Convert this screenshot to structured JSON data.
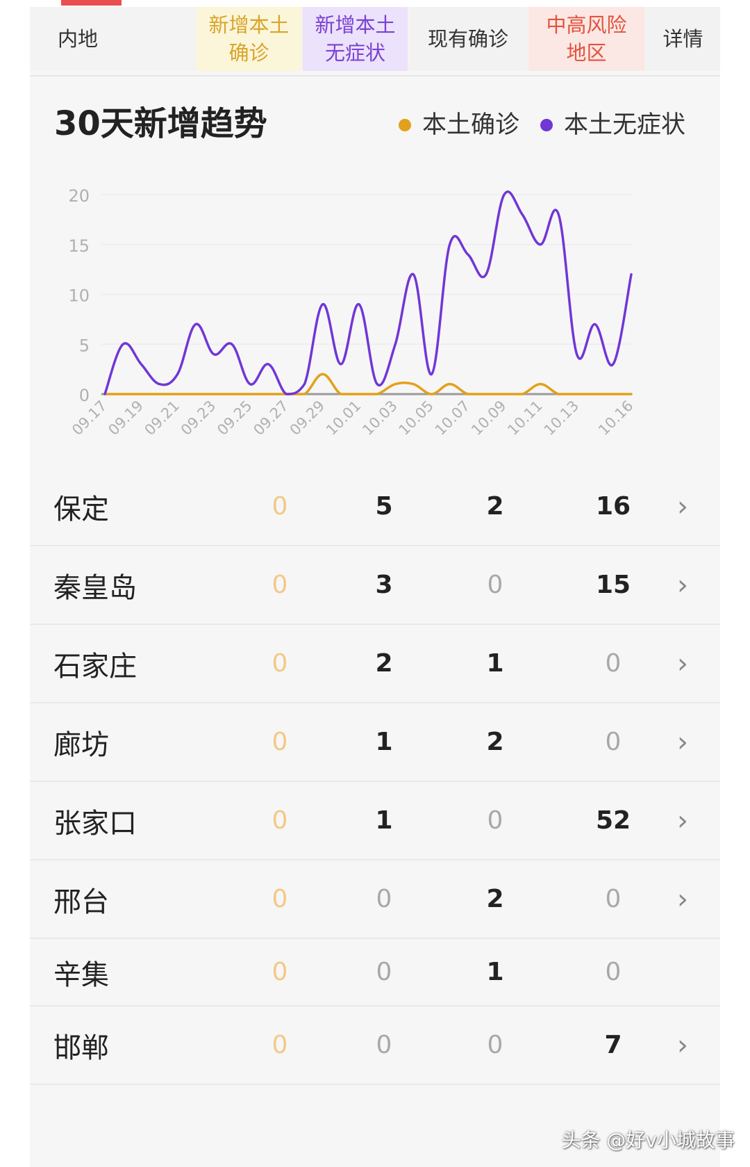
{
  "header": {
    "region_label": "内地",
    "col1_label": "新增本土\n确诊",
    "col2_label": "新增本土\n无症状",
    "col3_label": "现有确诊",
    "col4_label": "中高风险\n地区",
    "col5_label": "详情"
  },
  "chart": {
    "title": "30天新增趋势",
    "legend": [
      {
        "name": "本土确诊",
        "color": "#e3a01a"
      },
      {
        "name": "本土无症状",
        "color": "#7136d6"
      }
    ]
  },
  "chart_data": {
    "type": "line",
    "title": "30天新增趋势",
    "x": [
      "09.17",
      "09.18",
      "09.19",
      "09.20",
      "09.21",
      "09.22",
      "09.23",
      "09.24",
      "09.25",
      "09.26",
      "09.27",
      "09.28",
      "09.29",
      "09.30",
      "10.01",
      "10.02",
      "10.03",
      "10.04",
      "10.05",
      "10.06",
      "10.07",
      "10.08",
      "10.09",
      "10.10",
      "10.11",
      "10.12",
      "10.13",
      "10.14",
      "10.15",
      "10.16"
    ],
    "x_tick_labels": [
      "09.17",
      "09.19",
      "09.21",
      "09.23",
      "09.25",
      "09.27",
      "09.29",
      "10.01",
      "10.03",
      "10.05",
      "10.07",
      "10.09",
      "10.11",
      "10.13",
      "10.16"
    ],
    "y_ticks": [
      0,
      5,
      10,
      15,
      20
    ],
    "ylim": [
      0,
      20
    ],
    "grid": true,
    "legend_position": "top-right",
    "series": [
      {
        "name": "本土确诊",
        "color": "#e3a01a",
        "values": [
          0,
          0,
          0,
          0,
          0,
          0,
          0,
          0,
          0,
          0,
          0,
          0,
          2,
          0,
          0,
          0,
          1,
          1,
          0,
          1,
          0,
          0,
          0,
          0,
          1,
          0,
          0,
          0,
          0,
          0
        ]
      },
      {
        "name": "本土无症状",
        "color": "#7136d6",
        "values": [
          0,
          5,
          3,
          1,
          2,
          7,
          4,
          5,
          1,
          3,
          0,
          1,
          9,
          3,
          9,
          1,
          5,
          12,
          2,
          15,
          14,
          12,
          20,
          18,
          15,
          18,
          4,
          7,
          3,
          12
        ]
      }
    ]
  },
  "rows": [
    {
      "name": "保定",
      "v1": "0",
      "v2": "5",
      "v3": "2",
      "v4": "16",
      "chev": "›"
    },
    {
      "name": "秦皇岛",
      "v1": "0",
      "v2": "3",
      "v3": "0",
      "v4": "15",
      "chev": "›"
    },
    {
      "name": "石家庄",
      "v1": "0",
      "v2": "2",
      "v3": "1",
      "v4": "0",
      "chev": "›"
    },
    {
      "name": "廊坊",
      "v1": "0",
      "v2": "1",
      "v3": "2",
      "v4": "0",
      "chev": "›"
    },
    {
      "name": "张家口",
      "v1": "0",
      "v2": "1",
      "v3": "0",
      "v4": "52",
      "chev": "›"
    },
    {
      "name": "邢台",
      "v1": "0",
      "v2": "0",
      "v3": "2",
      "v4": "0",
      "chev": "›"
    },
    {
      "name": "辛集",
      "v1": "0",
      "v2": "0",
      "v3": "1",
      "v4": "0",
      "chev": ""
    },
    {
      "name": "邯郸",
      "v1": "0",
      "v2": "0",
      "v3": "0",
      "v4": "7",
      "chev": "›"
    }
  ],
  "watermark": "头条 @好v小城故事"
}
